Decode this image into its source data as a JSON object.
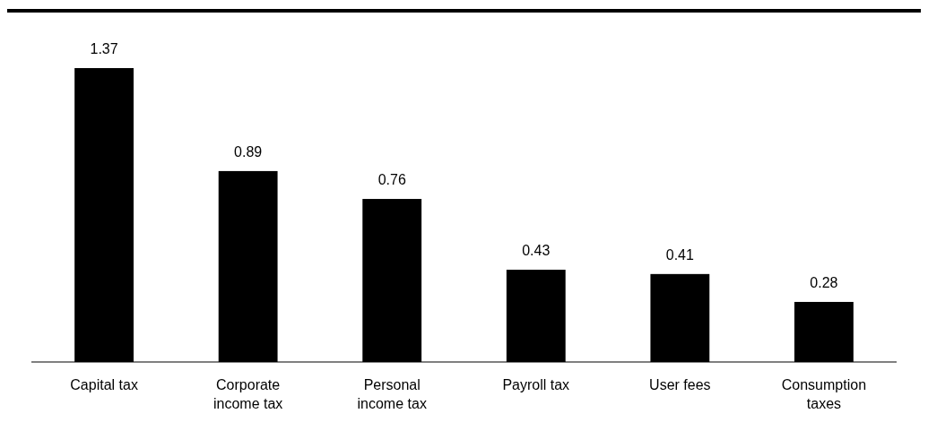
{
  "chart_data": {
    "type": "bar",
    "categories": [
      "Capital tax",
      "Corporate income tax",
      "Personal income tax",
      "Payroll tax",
      "User fees",
      "Consumption taxes"
    ],
    "values": [
      1.37,
      0.89,
      0.76,
      0.43,
      0.41,
      0.28
    ],
    "color": "#000000",
    "data_labels": true
  }
}
